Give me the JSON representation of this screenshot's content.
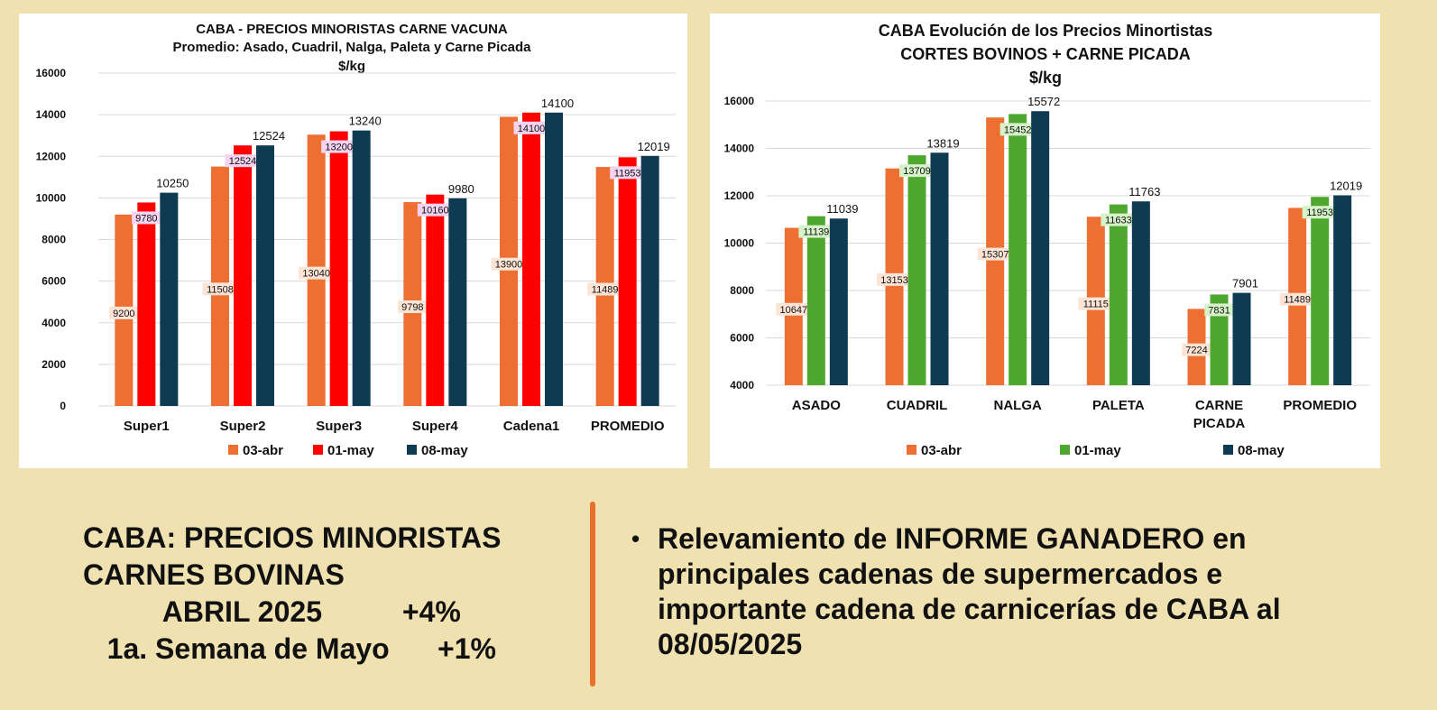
{
  "colors": {
    "background": "#f0e2b0",
    "abr": "#ed7032",
    "may01_red": "#ff0000",
    "may01_green": "#4ea72e",
    "may08": "#0e3a52",
    "divider": "#e8702a"
  },
  "chart_data": [
    {
      "type": "bar",
      "title": "CABA -  PRECIOS MINORISTAS CARNE VACUNA",
      "subtitle": "Promedio: Asado, Cuadril, Nalga, Paleta y Carne Picada",
      "unit": "$/kg",
      "categories": [
        "Super1",
        "Super2",
        "Super3",
        "Super4",
        "Cadena1",
        "PROMEDIO"
      ],
      "series": [
        {
          "name": "03-abr",
          "values": [
            9200,
            11508,
            13040,
            9798,
            13900,
            11489
          ]
        },
        {
          "name": "01-may",
          "values": [
            9780,
            12524,
            13200,
            10160,
            14100,
            11953
          ]
        },
        {
          "name": "08-may",
          "values": [
            10250,
            12524,
            13240,
            9980,
            14100,
            12019
          ]
        }
      ],
      "ylim": [
        0,
        16000
      ],
      "yticks": [
        0,
        2000,
        4000,
        6000,
        8000,
        10000,
        12000,
        14000,
        16000
      ],
      "grid": true,
      "legend": "bottom"
    },
    {
      "type": "bar",
      "title": "CABA Evolución de los Precios Minortistas",
      "subtitle": "CORTES BOVINOS + CARNE PICADA",
      "unit": "$/kg",
      "categories": [
        [
          "ASADO"
        ],
        [
          "CUADRIL"
        ],
        [
          "NALGA"
        ],
        [
          "PALETA"
        ],
        [
          "CARNE",
          "PICADA"
        ],
        [
          "PROMEDIO"
        ]
      ],
      "series": [
        {
          "name": "03-abr",
          "values": [
            10647,
            13153,
            15307,
            11115,
            7224,
            11489
          ]
        },
        {
          "name": "01-may",
          "values": [
            11139,
            13709,
            15452,
            11633,
            7831,
            11953
          ]
        },
        {
          "name": "08-may",
          "values": [
            11039,
            13819,
            15572,
            11763,
            7901,
            12019
          ]
        }
      ],
      "ylim": [
        4000,
        16000
      ],
      "yticks": [
        4000,
        6000,
        8000,
        10000,
        12000,
        14000,
        16000
      ],
      "grid": true,
      "legend": "bottom"
    }
  ],
  "summary": {
    "line1": "CABA: PRECIOS MINORISTAS",
    "line2": "CARNES BOVINAS",
    "line3": "          ABRIL 2025          +4%",
    "line4": "   1a. Semana de Mayo      +1%"
  },
  "note": {
    "bullet": "•",
    "text": "Relevamiento de INFORME GANADERO en principales cadenas de supermercados e importante cadena de carnicerías de CABA al 08/05/2025"
  }
}
